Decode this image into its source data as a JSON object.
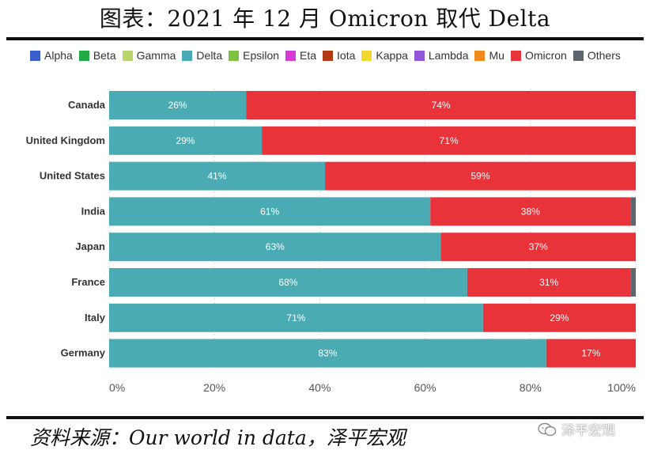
{
  "title": "图表：2021 年 12 月 Omicron 取代 Delta",
  "source": "资料来源：Our world in data，泽平宏观",
  "watermark": "泽平宏观",
  "chart_data": {
    "type": "bar",
    "orientation": "horizontal",
    "stacked": true,
    "categories": [
      "Canada",
      "United Kingdom",
      "United States",
      "India",
      "Japan",
      "France",
      "Italy",
      "Germany"
    ],
    "series": [
      {
        "name": "Alpha",
        "color": "#3a5fcd",
        "values": [
          0,
          0,
          0,
          0,
          0,
          0,
          0,
          0
        ]
      },
      {
        "name": "Beta",
        "color": "#22aa44",
        "values": [
          0,
          0,
          0,
          0,
          0,
          0,
          0,
          0
        ]
      },
      {
        "name": "Gamma",
        "color": "#b9d46c",
        "values": [
          0,
          0,
          0,
          0,
          0,
          0,
          0,
          0
        ]
      },
      {
        "name": "Delta",
        "color": "#4aabb5",
        "values": [
          26,
          29,
          41,
          61,
          63,
          68,
          71,
          83
        ]
      },
      {
        "name": "Epsilon",
        "color": "#7cc240",
        "values": [
          0,
          0,
          0,
          0,
          0,
          0,
          0,
          0
        ]
      },
      {
        "name": "Eta",
        "color": "#d63ad6",
        "values": [
          0,
          0,
          0,
          0,
          0,
          0,
          0,
          0
        ]
      },
      {
        "name": "Iota",
        "color": "#b23a12",
        "values": [
          0,
          0,
          0,
          0,
          0,
          0,
          0,
          0
        ]
      },
      {
        "name": "Kappa",
        "color": "#f2d72e",
        "values": [
          0,
          0,
          0,
          0,
          0,
          0,
          0,
          0
        ]
      },
      {
        "name": "Lambda",
        "color": "#9257d6",
        "values": [
          0,
          0,
          0,
          0,
          0,
          0,
          0,
          0
        ]
      },
      {
        "name": "Mu",
        "color": "#f08a1c",
        "values": [
          0,
          0,
          0,
          0,
          0,
          0,
          0,
          0
        ]
      },
      {
        "name": "Omicron",
        "color": "#e8333a",
        "values": [
          74,
          71,
          59,
          38,
          37,
          31,
          29,
          17
        ]
      },
      {
        "name": "Others",
        "color": "#5e6670",
        "values": [
          0,
          0,
          0,
          1,
          0,
          1,
          0,
          0
        ]
      }
    ],
    "data_labels": [
      [
        "26%",
        "74%"
      ],
      [
        "29%",
        "71%"
      ],
      [
        "41%",
        "59%"
      ],
      [
        "61%",
        "38%"
      ],
      [
        "63%",
        "37%"
      ],
      [
        "68%",
        "31%"
      ],
      [
        "71%",
        "29%"
      ],
      [
        "83%",
        "17%"
      ]
    ],
    "xlim": [
      0,
      100
    ],
    "x_ticks": [
      "0%",
      "20%",
      "40%",
      "60%",
      "80%",
      "100%"
    ],
    "grid": true,
    "legend_position": "top-left"
  }
}
